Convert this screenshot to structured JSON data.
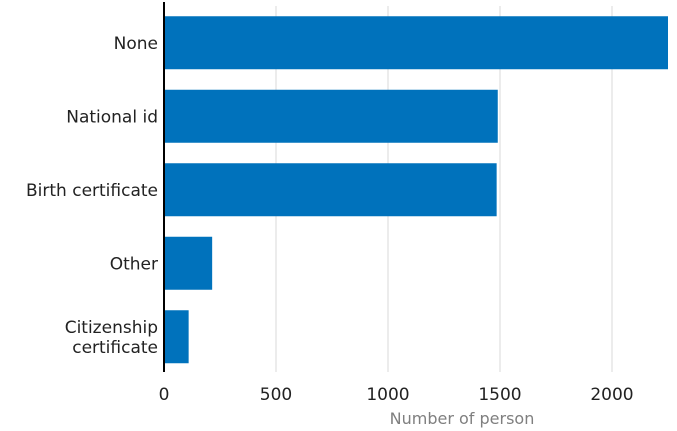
{
  "chart_data": {
    "type": "bar",
    "orientation": "horizontal",
    "categories": [
      "None",
      "National id",
      "Birth certificate",
      "Other",
      "Citizenship certificate"
    ],
    "category_label_lines": [
      [
        "None"
      ],
      [
        "National id"
      ],
      [
        "Birth certificate"
      ],
      [
        "Other"
      ],
      [
        "Citizenship",
        "certificate"
      ]
    ],
    "values": [
      2250,
      1490,
      1485,
      215,
      110
    ],
    "xlabel": "Number of person",
    "xlim": [
      0,
      2250
    ],
    "xticks": [
      0,
      500,
      1000,
      1500,
      2000
    ],
    "grid": true,
    "bar_color": "#0072bc"
  }
}
